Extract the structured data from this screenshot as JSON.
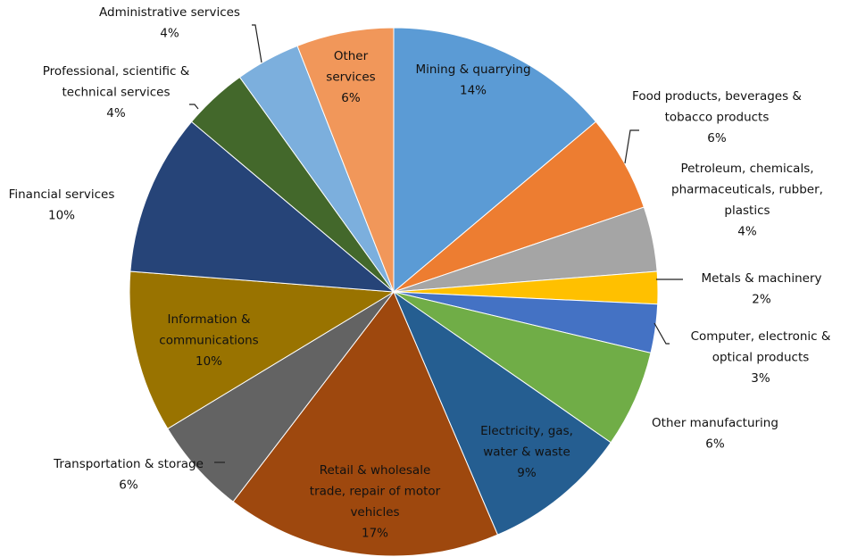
{
  "chart_data": {
    "type": "pie",
    "title": "",
    "start_angle_deg": 0,
    "direction": "clockwise",
    "legend": "none",
    "slices": [
      {
        "label": "Mining & quarrying",
        "label_lines": [
          "Mining & quarrying",
          "14%"
        ],
        "value": 14,
        "value_text": "14%",
        "color": "#5b9bd5",
        "label_placement": "inside"
      },
      {
        "label": "Food products, beverages & tobacco products",
        "label_lines": [
          "Food products, beverages &",
          "tobacco products",
          "6%"
        ],
        "value": 6,
        "value_text": "6%",
        "color": "#ed7d31",
        "label_placement": "outside"
      },
      {
        "label": "Petroleum, chemicals, pharmaceuticals, rubber, plastics",
        "label_lines": [
          "Petroleum, chemicals,",
          "pharmaceuticals, rubber,",
          "plastics",
          "4%"
        ],
        "value": 4,
        "value_text": "4%",
        "color": "#a5a5a5",
        "label_placement": "outside"
      },
      {
        "label": "Metals & machinery",
        "label_lines": [
          "Metals & machinery",
          "2%"
        ],
        "value": 2,
        "value_text": "2%",
        "color": "#ffc000",
        "label_placement": "outside"
      },
      {
        "label": "Computer, electronic & optical products",
        "label_lines": [
          "Computer, electronic &",
          "optical products",
          "3%"
        ],
        "value": 3,
        "value_text": "3%",
        "color": "#4472c4",
        "label_placement": "outside"
      },
      {
        "label": "Other manufacturing",
        "label_lines": [
          "Other manufacturing",
          "6%"
        ],
        "value": 6,
        "value_text": "6%",
        "color": "#70ad47",
        "label_placement": "outside"
      },
      {
        "label": "Electricity, gas, water & waste",
        "label_lines": [
          "Electricity, gas,",
          "water & waste",
          "9%"
        ],
        "value": 9,
        "value_text": "9%",
        "color": "#255e91",
        "label_placement": "inside"
      },
      {
        "label": "Retail & wholesale trade, repair of motor vehicles",
        "label_lines": [
          "Retail & wholesale",
          "trade, repair of motor",
          "vehicles",
          "17%"
        ],
        "value": 17,
        "value_text": "17%",
        "color": "#9e480e",
        "label_placement": "inside"
      },
      {
        "label": "Transportation & storage",
        "label_lines": [
          "Transportation & storage",
          "6%"
        ],
        "value": 6,
        "value_text": "6%",
        "color": "#636363",
        "label_placement": "outside"
      },
      {
        "label": "Information & communications",
        "label_lines": [
          "Information &",
          "communications",
          "10%"
        ],
        "value": 10,
        "value_text": "10%",
        "color": "#997300",
        "label_placement": "inside"
      },
      {
        "label": "Financial services",
        "label_lines": [
          "Financial services",
          "10%"
        ],
        "value": 10,
        "value_text": "10%",
        "color": "#264478",
        "label_placement": "outside"
      },
      {
        "label": "Professional, scientific & technical services",
        "label_lines": [
          "Professional, scientific &",
          "technical services",
          "4%"
        ],
        "value": 4,
        "value_text": "4%",
        "color": "#43682b",
        "label_placement": "outside"
      },
      {
        "label": "Administrative services",
        "label_lines": [
          "Administrative services",
          "4%"
        ],
        "value": 4,
        "value_text": "4%",
        "color": "#7cafdd",
        "label_placement": "outside"
      },
      {
        "label": "Other services",
        "label_lines": [
          "Other",
          "services",
          "6%"
        ],
        "value": 6,
        "value_text": "6%",
        "color": "#f1975a",
        "label_placement": "inside"
      }
    ]
  }
}
